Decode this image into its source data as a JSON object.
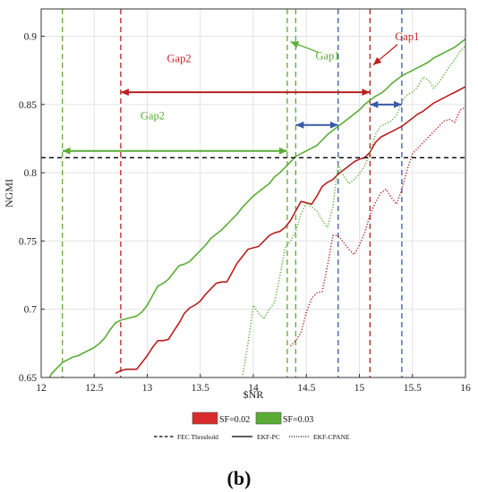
{
  "chart_data": {
    "type": "line",
    "xlabel": "$NR",
    "ylabel": "NGMI",
    "xlim": [
      12,
      16
    ],
    "ylim": [
      0.65,
      0.92
    ],
    "xticks": [
      "12",
      "12.5",
      "13",
      "13.5",
      "14",
      "14.5",
      "15",
      "15.5",
      "16"
    ],
    "yticks": [
      "0.65",
      "0.7",
      "0.75",
      "0.8",
      "0.85",
      "0.9"
    ],
    "grid": true,
    "threshold": {
      "name": "FEC Threshold",
      "y": 0.811,
      "color": "#000000"
    },
    "series": [
      {
        "name": "SF=0.02 EKF-PC",
        "color": "#b8201f",
        "style": "solid",
        "x": [
          12.7,
          12.75,
          12.8,
          12.85,
          12.9,
          12.95,
          13.0,
          13.05,
          13.1,
          13.15,
          13.2,
          13.25,
          13.3,
          13.35,
          13.4,
          13.45,
          13.5,
          13.55,
          13.6,
          13.65,
          13.7,
          13.75,
          13.8,
          13.85,
          13.9,
          13.95,
          14.0,
          14.05,
          14.1,
          14.15,
          14.2,
          14.25,
          14.3,
          14.35,
          14.4,
          14.45,
          14.5,
          14.55,
          14.6,
          14.65,
          14.7,
          14.75,
          14.8,
          14.85,
          14.9,
          14.95,
          15.0,
          15.05,
          15.1,
          15.15,
          15.2,
          15.25,
          15.3,
          15.35,
          15.4,
          15.45,
          15.5,
          15.55,
          15.6,
          15.65,
          15.7,
          15.75,
          15.8,
          15.85,
          15.9,
          15.95,
          16.0
        ],
        "y": [
          0.653,
          0.655,
          0.656,
          0.656,
          0.656,
          0.661,
          0.666,
          0.672,
          0.677,
          0.677,
          0.678,
          0.684,
          0.69,
          0.697,
          0.701,
          0.703,
          0.706,
          0.711,
          0.715,
          0.719,
          0.72,
          0.72,
          0.727,
          0.734,
          0.739,
          0.744,
          0.745,
          0.746,
          0.75,
          0.754,
          0.756,
          0.757,
          0.76,
          0.765,
          0.772,
          0.779,
          0.778,
          0.777,
          0.783,
          0.79,
          0.793,
          0.795,
          0.799,
          0.802,
          0.805,
          0.808,
          0.81,
          0.811,
          0.815,
          0.822,
          0.826,
          0.828,
          0.83,
          0.832,
          0.834,
          0.837,
          0.84,
          0.843,
          0.845,
          0.848,
          0.851,
          0.853,
          0.855,
          0.857,
          0.859,
          0.861,
          0.863
        ]
      },
      {
        "name": "SF=0.03 EKF-PC",
        "color": "#5aac35",
        "style": "solid",
        "x": [
          12.0,
          12.05,
          12.1,
          12.15,
          12.2,
          12.25,
          12.3,
          12.35,
          12.4,
          12.45,
          12.5,
          12.55,
          12.6,
          12.65,
          12.7,
          12.75,
          12.8,
          12.85,
          12.9,
          12.95,
          13.0,
          13.05,
          13.1,
          13.15,
          13.2,
          13.25,
          13.3,
          13.35,
          13.4,
          13.45,
          13.5,
          13.55,
          13.6,
          13.65,
          13.7,
          13.75,
          13.8,
          13.85,
          13.9,
          13.95,
          14.0,
          14.05,
          14.1,
          14.15,
          14.2,
          14.25,
          14.3,
          14.35,
          14.4,
          14.45,
          14.5,
          14.55,
          14.6,
          14.65,
          14.7,
          14.75,
          14.8,
          14.85,
          14.9,
          14.95,
          15.0,
          15.05,
          15.1,
          15.15,
          15.2,
          15.25,
          15.3,
          15.35,
          15.4,
          15.45,
          15.5,
          15.55,
          15.6,
          15.65,
          15.7,
          15.75,
          15.8,
          15.85,
          15.9,
          15.95,
          16.0
        ],
        "y": [
          0.642,
          0.646,
          0.653,
          0.657,
          0.661,
          0.663,
          0.665,
          0.666,
          0.668,
          0.67,
          0.672,
          0.675,
          0.679,
          0.685,
          0.69,
          0.692,
          0.693,
          0.694,
          0.695,
          0.698,
          0.703,
          0.71,
          0.717,
          0.719,
          0.722,
          0.727,
          0.732,
          0.733,
          0.735,
          0.739,
          0.743,
          0.747,
          0.752,
          0.755,
          0.758,
          0.762,
          0.766,
          0.77,
          0.775,
          0.779,
          0.783,
          0.786,
          0.789,
          0.792,
          0.797,
          0.8,
          0.804,
          0.808,
          0.812,
          0.814,
          0.816,
          0.818,
          0.82,
          0.824,
          0.828,
          0.831,
          0.834,
          0.837,
          0.84,
          0.843,
          0.846,
          0.85,
          0.853,
          0.856,
          0.858,
          0.861,
          0.865,
          0.868,
          0.871,
          0.873,
          0.875,
          0.877,
          0.879,
          0.881,
          0.884,
          0.886,
          0.888,
          0.89,
          0.892,
          0.895,
          0.898
        ]
      },
      {
        "name": "SF=0.02 EKF-CPANE",
        "color": "#b8201f",
        "style": "dotted",
        "x": [
          14.35,
          14.4,
          14.45,
          14.5,
          14.55,
          14.6,
          14.65,
          14.7,
          14.75,
          14.8,
          14.85,
          14.9,
          14.95,
          15.0,
          15.05,
          15.1,
          15.15,
          15.2,
          15.25,
          15.3,
          15.35,
          15.4,
          15.45,
          15.5,
          15.55,
          15.6,
          15.65,
          15.7,
          15.75,
          15.8,
          15.85,
          15.9,
          15.95,
          16.0
        ],
        "y": [
          0.673,
          0.677,
          0.683,
          0.698,
          0.708,
          0.712,
          0.713,
          0.732,
          0.754,
          0.754,
          0.749,
          0.744,
          0.74,
          0.747,
          0.756,
          0.769,
          0.778,
          0.785,
          0.788,
          0.782,
          0.777,
          0.788,
          0.802,
          0.814,
          0.818,
          0.822,
          0.826,
          0.83,
          0.834,
          0.838,
          0.839,
          0.837,
          0.846,
          0.848
        ]
      },
      {
        "name": "SF=0.03 EKF-CPANE",
        "color": "#5aac35",
        "style": "dotted",
        "x": [
          13.9,
          13.95,
          14.0,
          14.05,
          14.1,
          14.15,
          14.2,
          14.25,
          14.3,
          14.35,
          14.4,
          14.45,
          14.5,
          14.55,
          14.6,
          14.65,
          14.7,
          14.75,
          14.8,
          14.85,
          14.9,
          14.95,
          15.0,
          15.05,
          15.1,
          15.15,
          15.2,
          15.25,
          15.3,
          15.35,
          15.4,
          15.45,
          15.5,
          15.55,
          15.6,
          15.65,
          15.7,
          15.75,
          15.8,
          15.85,
          15.9,
          15.95,
          16.0
        ],
        "y": [
          0.652,
          0.675,
          0.703,
          0.697,
          0.693,
          0.7,
          0.705,
          0.724,
          0.745,
          0.75,
          0.757,
          0.77,
          0.778,
          0.775,
          0.772,
          0.765,
          0.76,
          0.775,
          0.806,
          0.798,
          0.792,
          0.795,
          0.799,
          0.805,
          0.814,
          0.828,
          0.834,
          0.836,
          0.838,
          0.842,
          0.852,
          0.857,
          0.859,
          0.863,
          0.87,
          0.868,
          0.862,
          0.866,
          0.872,
          0.878,
          0.883,
          0.889,
          0.893
        ]
      }
    ],
    "vlines": [
      {
        "x": 12.2,
        "color": "#5aac35"
      },
      {
        "x": 12.75,
        "color": "#b8201f"
      },
      {
        "x": 14.32,
        "color": "#5aac35"
      },
      {
        "x": 14.4,
        "color": "#5aac35"
      },
      {
        "x": 14.8,
        "color": "#3a5aa8"
      },
      {
        "x": 15.1,
        "color": "#b8201f"
      },
      {
        "x": 15.4,
        "color": "#3a5aa8"
      }
    ],
    "arrows": [
      {
        "x1": 12.75,
        "x2": 15.1,
        "y": 0.859,
        "color": "#b8201f"
      },
      {
        "x1": 12.2,
        "x2": 14.32,
        "y": 0.816,
        "color": "#5aac35"
      },
      {
        "x1": 14.4,
        "x2": 14.8,
        "y": 0.835,
        "color": "#3a5aa8"
      },
      {
        "x1": 15.1,
        "x2": 15.4,
        "y": 0.85,
        "color": "#3a5aa8"
      }
    ],
    "annotations": [
      {
        "text": "Gap2",
        "x": 13.3,
        "y": 0.881,
        "color": "#c42826"
      },
      {
        "text": "Gap1",
        "x": 14.7,
        "y": 0.883,
        "color": "#5aac35"
      },
      {
        "text": "Gap2",
        "x": 13.05,
        "y": 0.839,
        "color": "#5aac35"
      },
      {
        "text": "Gap1",
        "x": 15.45,
        "y": 0.897,
        "color": "#c42826"
      }
    ],
    "legend": {
      "row1": [
        {
          "label": "SF=0.02",
          "color": "#d92b2b"
        },
        {
          "label": "SF=0.03",
          "color": "#5aac35"
        }
      ],
      "row2": [
        {
          "label": "FEC Threshold",
          "style": "dashed"
        },
        {
          "label": "EKF-PC",
          "style": "solid"
        },
        {
          "label": "EKF-CPANE",
          "style": "dotted"
        }
      ]
    }
  },
  "caption": "(b)"
}
